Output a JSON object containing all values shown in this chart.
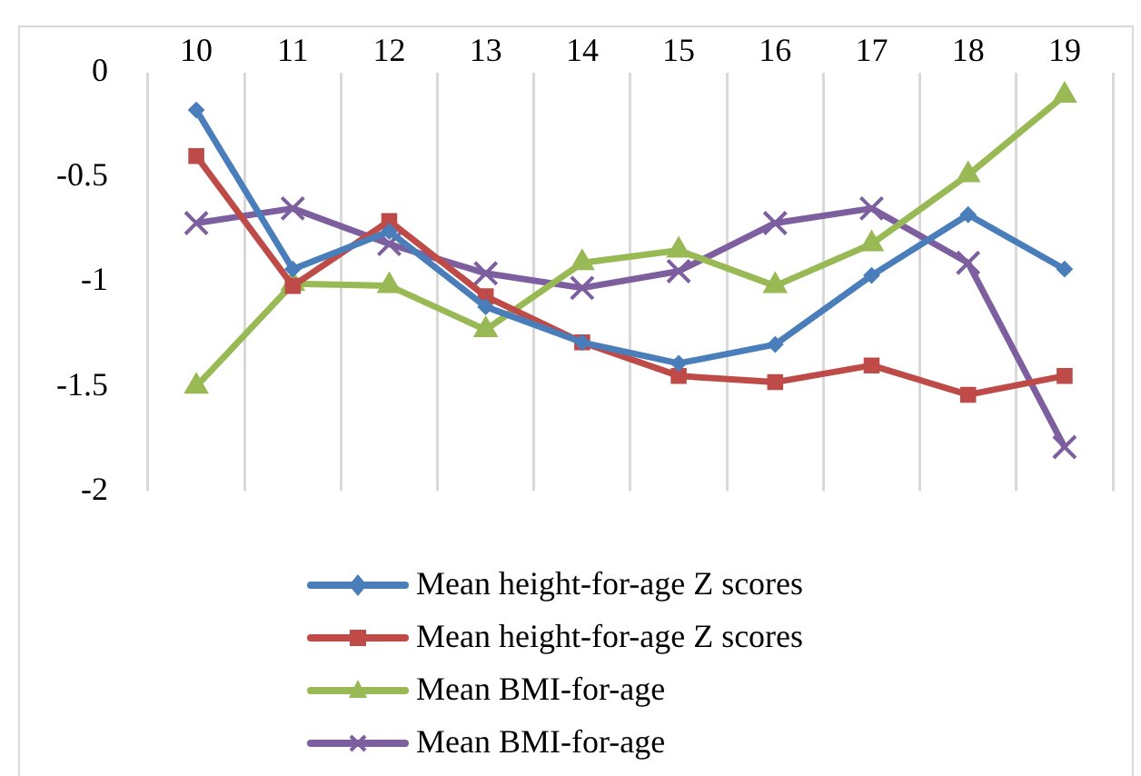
{
  "chart_data": {
    "type": "line",
    "categories": [
      "10",
      "11",
      "12",
      "13",
      "14",
      "15",
      "16",
      "17",
      "18",
      "19"
    ],
    "series": [
      {
        "name": "Mean height-for-age Z scores",
        "color": "#4a7ebb",
        "marker": "diamond",
        "values": [
          -0.18,
          -0.94,
          -0.76,
          -1.12,
          -1.29,
          -1.39,
          -1.3,
          -0.97,
          -0.68,
          -0.94
        ]
      },
      {
        "name": "Mean height-for-age Z scores",
        "color": "#be4b48",
        "marker": "square",
        "values": [
          -0.4,
          -1.02,
          -0.71,
          -1.07,
          -1.29,
          -1.45,
          -1.48,
          -1.4,
          -1.54,
          -1.45
        ]
      },
      {
        "name": "Mean BMI-for-age",
        "color": "#98b954",
        "marker": "triangle",
        "values": [
          -1.5,
          -1.01,
          -1.02,
          -1.23,
          -0.91,
          -0.85,
          -1.02,
          -0.82,
          -0.49,
          -0.11
        ]
      },
      {
        "name": "Mean BMI-for-age",
        "color": "#7d5fa0",
        "marker": "cross",
        "values": [
          -0.72,
          -0.65,
          -0.82,
          -0.96,
          -1.03,
          -0.95,
          -0.72,
          -0.65,
          -0.91,
          -1.79
        ]
      }
    ],
    "ylim": [
      -2,
      0
    ],
    "yticks": [
      0,
      -0.5,
      -1,
      -1.5,
      -2
    ],
    "grid": "x",
    "legend": "bottom"
  }
}
